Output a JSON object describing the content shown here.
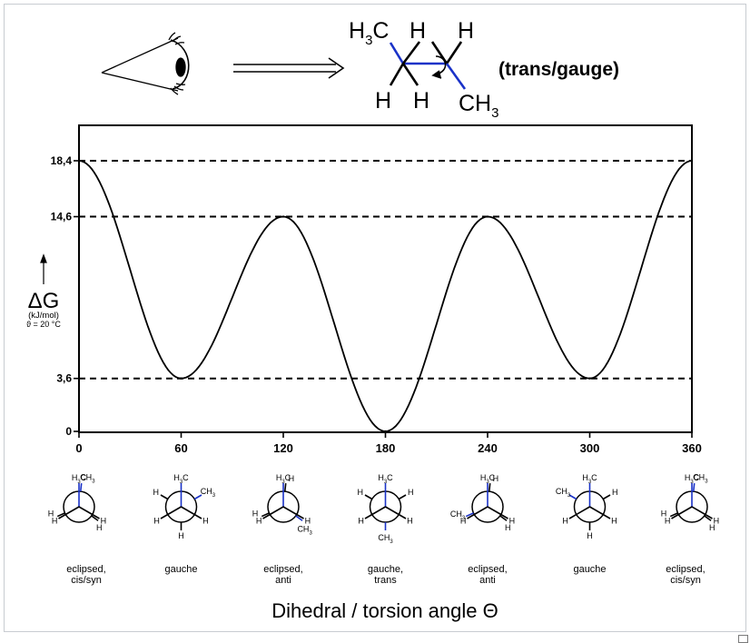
{
  "header": {
    "methyl_left": {
      "main": "H",
      "sub": "3",
      "tail": "C"
    },
    "h_top_mid": "H",
    "h_top_right": "H",
    "h_bot_left": "H",
    "h_bot_mid": "H",
    "methyl_right": {
      "main": "CH",
      "sub": "3"
    },
    "caption": "(trans/gauge)"
  },
  "colors": {
    "bond_highlight": "#1a32c8",
    "line": "#000000"
  },
  "icons": [
    "eye-icon",
    "double-arrow-icon",
    "rotation-arrow-icon",
    "expand-icon"
  ],
  "chart_data": {
    "type": "line",
    "title": "",
    "xlabel": "Dihedral / torsion angle Θ",
    "ylabel": {
      "symbol": "ΔG",
      "unit": "(kJ/mol)",
      "condition": "ϑ = 20 °C"
    },
    "xlim": [
      0,
      360
    ],
    "ylim": [
      0,
      18.4
    ],
    "x_ticks": [
      0,
      60,
      120,
      180,
      240,
      300,
      360
    ],
    "y_ticks": [
      0,
      3.6,
      14.6,
      18.4
    ],
    "y_tick_labels": [
      "0",
      "3,6",
      "14,6",
      "18,4"
    ],
    "reference_lines": [
      3.6,
      14.6,
      18.4
    ],
    "grid": false,
    "series": [
      {
        "x": [
          0,
          60,
          120,
          180,
          240,
          300,
          360
        ],
        "y": [
          18.4,
          3.6,
          14.6,
          0,
          14.6,
          3.6,
          18.4
        ]
      }
    ],
    "conformations": [
      {
        "angle": 0,
        "label": [
          "eclipsed,",
          "cis/syn"
        ]
      },
      {
        "angle": 60,
        "label": [
          "gauche"
        ]
      },
      {
        "angle": 120,
        "label": [
          "eclipsed,",
          "anti"
        ]
      },
      {
        "angle": 180,
        "label": [
          "gauche,",
          "trans"
        ]
      },
      {
        "angle": 240,
        "label": [
          "eclipsed,",
          "anti"
        ]
      },
      {
        "angle": 300,
        "label": [
          "gauche"
        ]
      },
      {
        "angle": 360,
        "label": [
          "eclipsed,",
          "cis/syn"
        ]
      }
    ]
  }
}
